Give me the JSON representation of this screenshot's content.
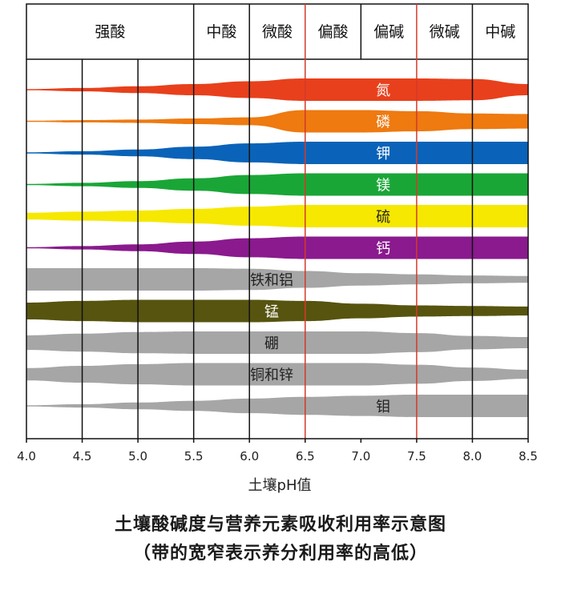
{
  "chart_data": {
    "type": "band",
    "title": "土壤酸碱度与营养元素吸收利用率示意图",
    "subtitle": "（带的宽窄表示养分利用率的高低）",
    "xlabel": "土壤pH值",
    "xlim": [
      4.0,
      8.5
    ],
    "x_ticks": [
      "4.0",
      "4.5",
      "5.0",
      "5.5",
      "6.0",
      "6.5",
      "7.0",
      "7.5",
      "8.0",
      "8.5"
    ],
    "gridlines_black": [
      4.5,
      5.0,
      5.5,
      6.0,
      8.0
    ],
    "gridlines_red": [
      6.5,
      7.5
    ],
    "zones": [
      {
        "label": "强酸",
        "from": 4.0,
        "to": 5.5
      },
      {
        "label": "中酸",
        "from": 5.5,
        "to": 6.0
      },
      {
        "label": "微酸",
        "from": 6.0,
        "to": 6.5
      },
      {
        "label": "偏酸",
        "from": 6.5,
        "to": 7.0
      },
      {
        "label": "偏碱",
        "from": 7.0,
        "to": 7.5
      },
      {
        "label": "微碱",
        "from": 7.5,
        "to": 8.0
      },
      {
        "label": "中碱",
        "from": 8.0,
        "to": 8.5
      }
    ],
    "x_samples": [
      4.0,
      4.5,
      5.0,
      5.5,
      6.0,
      6.5,
      7.0,
      7.5,
      8.0,
      8.5
    ],
    "series": [
      {
        "name": "氮",
        "color": "#e8401c",
        "label_at": 7.2,
        "widths": [
          0.05,
          0.15,
          0.3,
          0.5,
          0.75,
          1.0,
          1.0,
          1.0,
          0.95,
          0.5
        ]
      },
      {
        "name": "磷",
        "color": "#ee7a10",
        "label_at": 7.2,
        "widths": [
          0.05,
          0.1,
          0.15,
          0.25,
          0.35,
          1.0,
          1.0,
          0.9,
          0.7,
          0.65
        ]
      },
      {
        "name": "钾",
        "color": "#0a63b8",
        "label_at": 7.2,
        "widths": [
          0.05,
          0.15,
          0.3,
          0.55,
          0.85,
          1.0,
          1.0,
          1.0,
          1.0,
          1.0
        ]
      },
      {
        "name": "镁",
        "color": "#1aa637",
        "label_at": 7.2,
        "widths": [
          0.05,
          0.15,
          0.3,
          0.55,
          0.85,
          1.0,
          1.0,
          1.0,
          1.0,
          1.0
        ]
      },
      {
        "name": "硫",
        "color": "#f6e800",
        "label_at": 7.2,
        "widths": [
          0.3,
          0.4,
          0.5,
          0.65,
          0.85,
          1.0,
          1.0,
          1.0,
          1.0,
          1.0
        ]
      },
      {
        "name": "钙",
        "color": "#8a1a8e",
        "label_at": 7.2,
        "widths": [
          0.05,
          0.15,
          0.3,
          0.55,
          0.85,
          1.0,
          1.0,
          1.0,
          1.0,
          1.0
        ]
      },
      {
        "name": "铁和铝",
        "color": "#a6a6a6",
        "label_at": 6.2,
        "widths": [
          1.0,
          1.0,
          1.0,
          1.0,
          0.95,
          0.75,
          0.55,
          0.45,
          0.35,
          0.3
        ]
      },
      {
        "name": "锰",
        "color": "#57540f",
        "label_at": 6.2,
        "widths": [
          0.75,
          0.9,
          1.0,
          1.0,
          1.0,
          0.9,
          0.65,
          0.5,
          0.45,
          0.4
        ]
      },
      {
        "name": "硼",
        "color": "#a6a6a6",
        "label_at": 6.2,
        "widths": [
          0.65,
          0.8,
          0.95,
          1.0,
          1.0,
          1.0,
          1.0,
          0.85,
          0.6,
          0.5
        ]
      },
      {
        "name": "铜和锌",
        "color": "#a6a6a6",
        "label_at": 6.2,
        "widths": [
          0.55,
          0.75,
          0.9,
          1.0,
          1.0,
          1.0,
          1.0,
          0.85,
          0.6,
          0.4
        ]
      },
      {
        "name": "钼",
        "color": "#a6a6a6",
        "label_at": 7.2,
        "widths": [
          0.05,
          0.15,
          0.3,
          0.45,
          0.65,
          0.8,
          0.9,
          1.0,
          1.0,
          1.0
        ]
      }
    ]
  }
}
